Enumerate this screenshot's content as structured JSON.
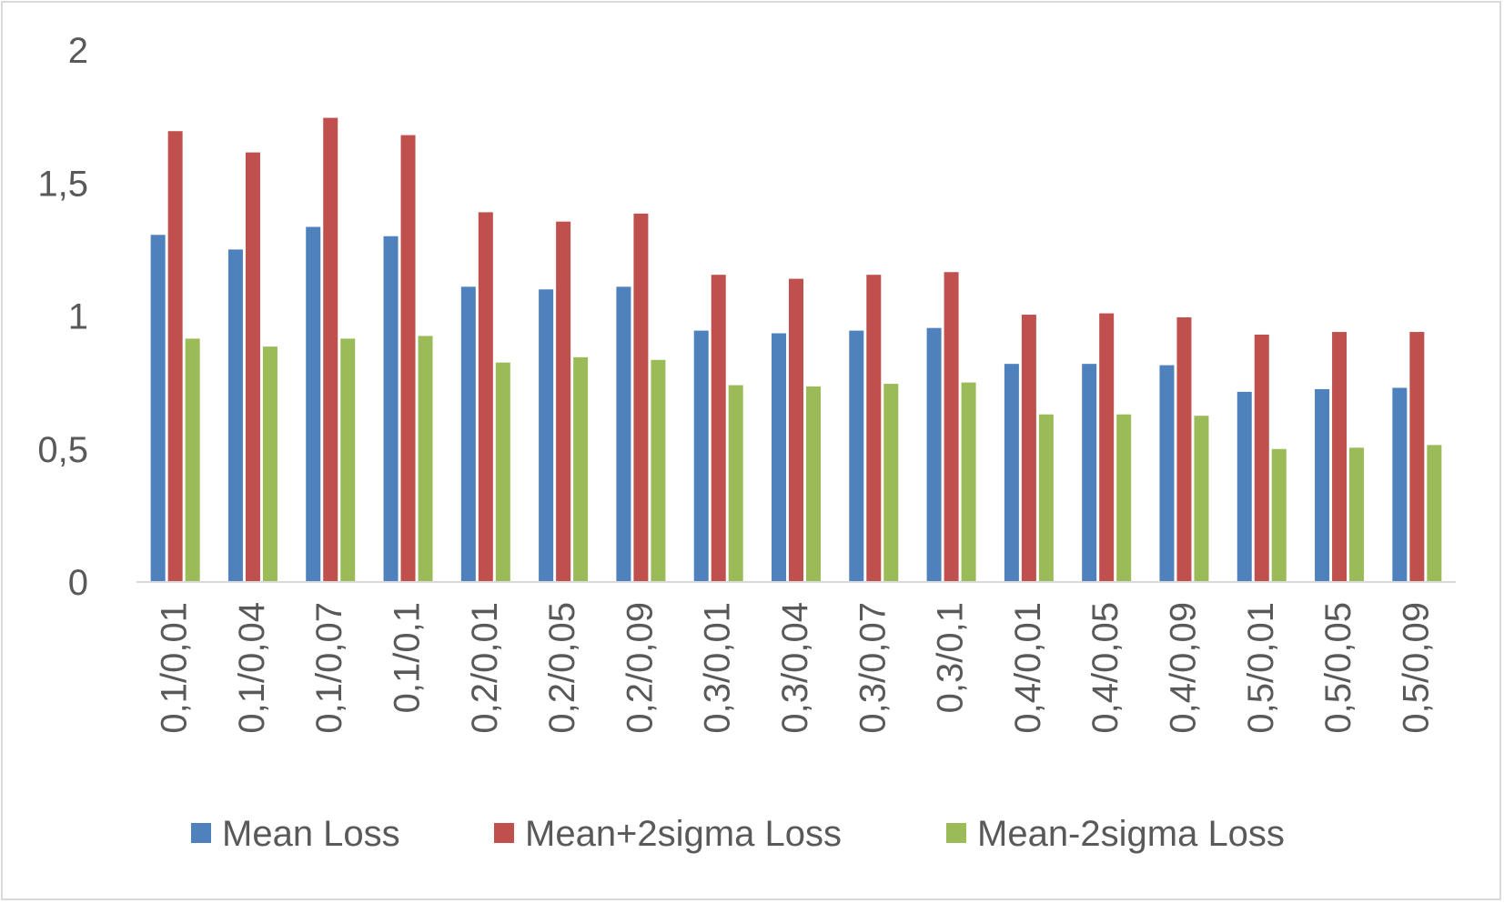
{
  "chart_data": {
    "type": "bar",
    "title": "",
    "xlabel": "",
    "ylabel": "",
    "ylim": [
      0,
      2
    ],
    "yticks": [
      0,
      0.5,
      1,
      1.5,
      2
    ],
    "ytick_labels": [
      "0",
      "0,5",
      "1",
      "1,5",
      "2"
    ],
    "grid": false,
    "legend_position": "bottom",
    "categories": [
      "0,1/0,01",
      "0,1/0,04",
      "0,1/0,07",
      "0,1/0,1",
      "0,2/0,01",
      "0,2/0,05",
      "0,2/0,09",
      "0,3/0,01",
      "0,3/0,04",
      "0,3/0,07",
      "0,3/0,1",
      "0,4/0,01",
      "0,4/0,05",
      "0,4/0,09",
      "0,5/0,01",
      "0,5/0,05",
      "0,5/0,09"
    ],
    "series": [
      {
        "name": "Mean Loss",
        "color": "#4f81bd",
        "values": [
          1.305,
          1.25,
          1.335,
          1.3,
          1.11,
          1.1,
          1.11,
          0.945,
          0.935,
          0.945,
          0.955,
          0.82,
          0.82,
          0.815,
          0.715,
          0.725,
          0.73
        ]
      },
      {
        "name": "Mean+2sigma Loss",
        "color": "#c0504d",
        "values": [
          1.695,
          1.615,
          1.745,
          1.68,
          1.39,
          1.355,
          1.385,
          1.155,
          1.14,
          1.155,
          1.165,
          1.005,
          1.01,
          0.995,
          0.93,
          0.94,
          0.94
        ]
      },
      {
        "name": "Mean-2sigma Loss",
        "color": "#9bbb59",
        "values": [
          0.915,
          0.885,
          0.915,
          0.925,
          0.825,
          0.845,
          0.835,
          0.74,
          0.735,
          0.745,
          0.75,
          0.63,
          0.63,
          0.625,
          0.5,
          0.505,
          0.515
        ]
      }
    ]
  }
}
